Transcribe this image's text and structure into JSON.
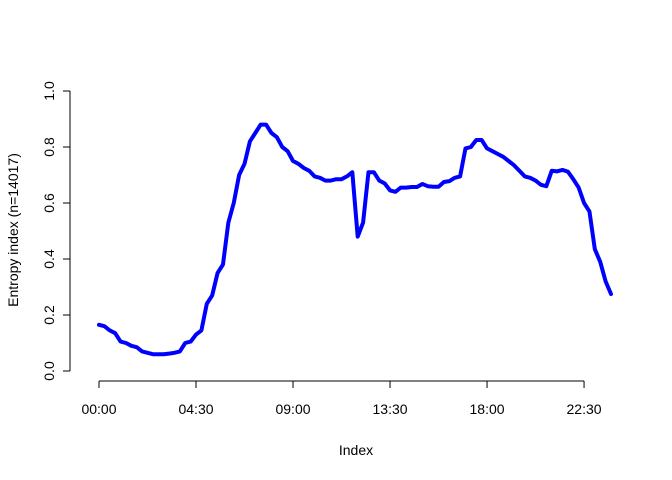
{
  "chart_data": {
    "type": "line",
    "title": "",
    "xlabel": "Index",
    "ylabel": "Entropy index (n=14017)",
    "x_ticks": [
      "00:00",
      "04:30",
      "09:00",
      "13:30",
      "18:00",
      "22:30"
    ],
    "x_tick_positions": [
      1,
      19,
      37,
      55,
      73,
      91
    ],
    "xlim": [
      1,
      96
    ],
    "ylim": [
      0,
      1
    ],
    "y_ticks": [
      "0.0",
      "0.2",
      "0.4",
      "0.6",
      "0.8",
      "1.0"
    ],
    "grid": false,
    "legend": "none",
    "color": "#0000ff",
    "series": [
      {
        "x": [
          1,
          2,
          3,
          4,
          5,
          6,
          7,
          8,
          9,
          10,
          11,
          12,
          13,
          14,
          15,
          16,
          17,
          18,
          19,
          20,
          21,
          22,
          23,
          24,
          25,
          26,
          27,
          28,
          29,
          30,
          31,
          32,
          33,
          34,
          35,
          36,
          37,
          38,
          39,
          40,
          41,
          42,
          43,
          44,
          45,
          46,
          47,
          48,
          49,
          50,
          51,
          52,
          53,
          54,
          55,
          56,
          57,
          58,
          59,
          60,
          61,
          62,
          63,
          64,
          65,
          66,
          67,
          68,
          69,
          70,
          71,
          72,
          73,
          74,
          75,
          76,
          77,
          78,
          79,
          80,
          81,
          82,
          83,
          84,
          85,
          86,
          87,
          88,
          89,
          90,
          91,
          92,
          93,
          94,
          95,
          96
        ],
        "values": [
          0.165,
          0.16,
          0.145,
          0.135,
          0.105,
          0.1,
          0.09,
          0.085,
          0.07,
          0.065,
          0.06,
          0.06,
          0.06,
          0.062,
          0.065,
          0.07,
          0.1,
          0.105,
          0.13,
          0.145,
          0.24,
          0.27,
          0.35,
          0.38,
          0.53,
          0.6,
          0.7,
          0.74,
          0.82,
          0.85,
          0.88,
          0.88,
          0.85,
          0.835,
          0.8,
          0.785,
          0.75,
          0.74,
          0.725,
          0.715,
          0.695,
          0.69,
          0.68,
          0.68,
          0.685,
          0.685,
          0.695,
          0.71,
          0.48,
          0.53,
          0.71,
          0.71,
          0.68,
          0.67,
          0.645,
          0.64,
          0.655,
          0.655,
          0.657,
          0.657,
          0.668,
          0.66,
          0.658,
          0.658,
          0.675,
          0.678,
          0.69,
          0.695,
          0.795,
          0.8,
          0.825,
          0.825,
          0.795,
          0.785,
          0.775,
          0.765,
          0.75,
          0.735,
          0.715,
          0.695,
          0.69,
          0.68,
          0.665,
          0.66,
          0.715,
          0.713,
          0.718,
          0.712,
          0.685,
          0.655,
          0.6,
          0.57,
          0.435,
          0.39,
          0.32,
          0.275
        ]
      }
    ]
  }
}
